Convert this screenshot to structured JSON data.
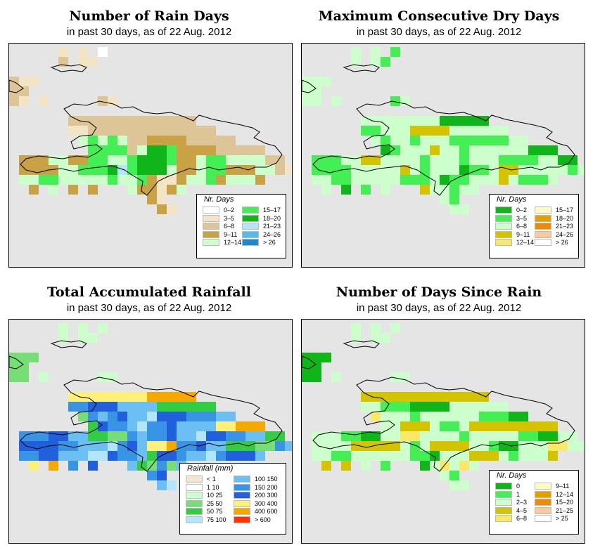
{
  "panels": [
    {
      "id": "rain-days",
      "title": "Number of Rain Days",
      "subtitle": "in past 30 days, as of  22 Aug. 2012",
      "legend": {
        "title": "Nr. Days",
        "items": [
          {
            "label": "0–2",
            "color": "#ffffff"
          },
          {
            "label": "3–5",
            "color": "#f2e4c4"
          },
          {
            "label": "6–8",
            "color": "#ddc597"
          },
          {
            "label": "9–11",
            "color": "#c9a246"
          },
          {
            "label": "12–14",
            "color": "#ccffcc"
          },
          {
            "label": "15–17",
            "color": "#44ee55"
          },
          {
            "label": "18–20",
            "color": "#0fb519"
          },
          {
            "label": "21–23",
            "color": "#b3e6fa"
          },
          {
            "label": "24–26",
            "color": "#55bbef"
          },
          {
            "label": "> 26",
            "color": "#1e88cc"
          }
        ]
      }
    },
    {
      "id": "max-dry-days",
      "title": "Maximum Consecutive Dry Days",
      "subtitle": "in past 30 days, as of  22 Aug. 2012",
      "legend": {
        "title": "Nr. Days",
        "items": [
          {
            "label": "0–2",
            "color": "#0fb519"
          },
          {
            "label": "3–5",
            "color": "#44ee55"
          },
          {
            "label": "6–8",
            "color": "#ccffcc"
          },
          {
            "label": "9–11",
            "color": "#d4c400"
          },
          {
            "label": "12–14",
            "color": "#f8e96b"
          },
          {
            "label": "15–17",
            "color": "#fff9c4"
          },
          {
            "label": "18–20",
            "color": "#e5a000"
          },
          {
            "label": "21–23",
            "color": "#f08a00"
          },
          {
            "label": "24–26",
            "color": "#fcc8a0"
          },
          {
            "label": "> 26",
            "color": "#ffffff"
          }
        ]
      }
    },
    {
      "id": "total-rainfall",
      "title": "Total Accumulated Rainfall",
      "subtitle": "in past 30 days, as of  22 Aug. 2012",
      "legend": {
        "title": "Rainfall (mm)",
        "items": [
          {
            "label": "< 1",
            "color": "#f2e6cc"
          },
          {
            "label": "1   10",
            "color": "#ffffff"
          },
          {
            "label": "10   25",
            "color": "#ccffcc"
          },
          {
            "label": "25   50",
            "color": "#77dd77"
          },
          {
            "label": "50   75",
            "color": "#33cc44"
          },
          {
            "label": "75   100",
            "color": "#b3e6fa"
          },
          {
            "label": "100   150",
            "color": "#6cbff2"
          },
          {
            "label": "150   200",
            "color": "#3a94e6"
          },
          {
            "label": "200   300",
            "color": "#2060dd"
          },
          {
            "label": "300   400",
            "color": "#fff07a"
          },
          {
            "label": "400   600",
            "color": "#f5a800"
          },
          {
            "label": "> 600",
            "color": "#ff3300"
          }
        ]
      }
    },
    {
      "id": "days-since-rain",
      "title": "Number of Days Since Rain",
      "subtitle": "in past 30 days, as of  22 Aug. 2012",
      "legend": {
        "title": "Nr. Days",
        "items": [
          {
            "label": "0",
            "color": "#0fb519"
          },
          {
            "label": "1",
            "color": "#44ee55"
          },
          {
            "label": "2–3",
            "color": "#ccffcc"
          },
          {
            "label": "4–5",
            "color": "#d4c400"
          },
          {
            "label": "6–8",
            "color": "#f8e96b"
          },
          {
            "label": "9–11",
            "color": "#fff9c4"
          },
          {
            "label": "12–14",
            "color": "#e5a000"
          },
          {
            "label": "15–20",
            "color": "#f08a00"
          },
          {
            "label": "21–25",
            "color": "#fcc8a0"
          },
          {
            "label": "> 25",
            "color": "#ffffff"
          }
        ]
      }
    }
  ]
}
